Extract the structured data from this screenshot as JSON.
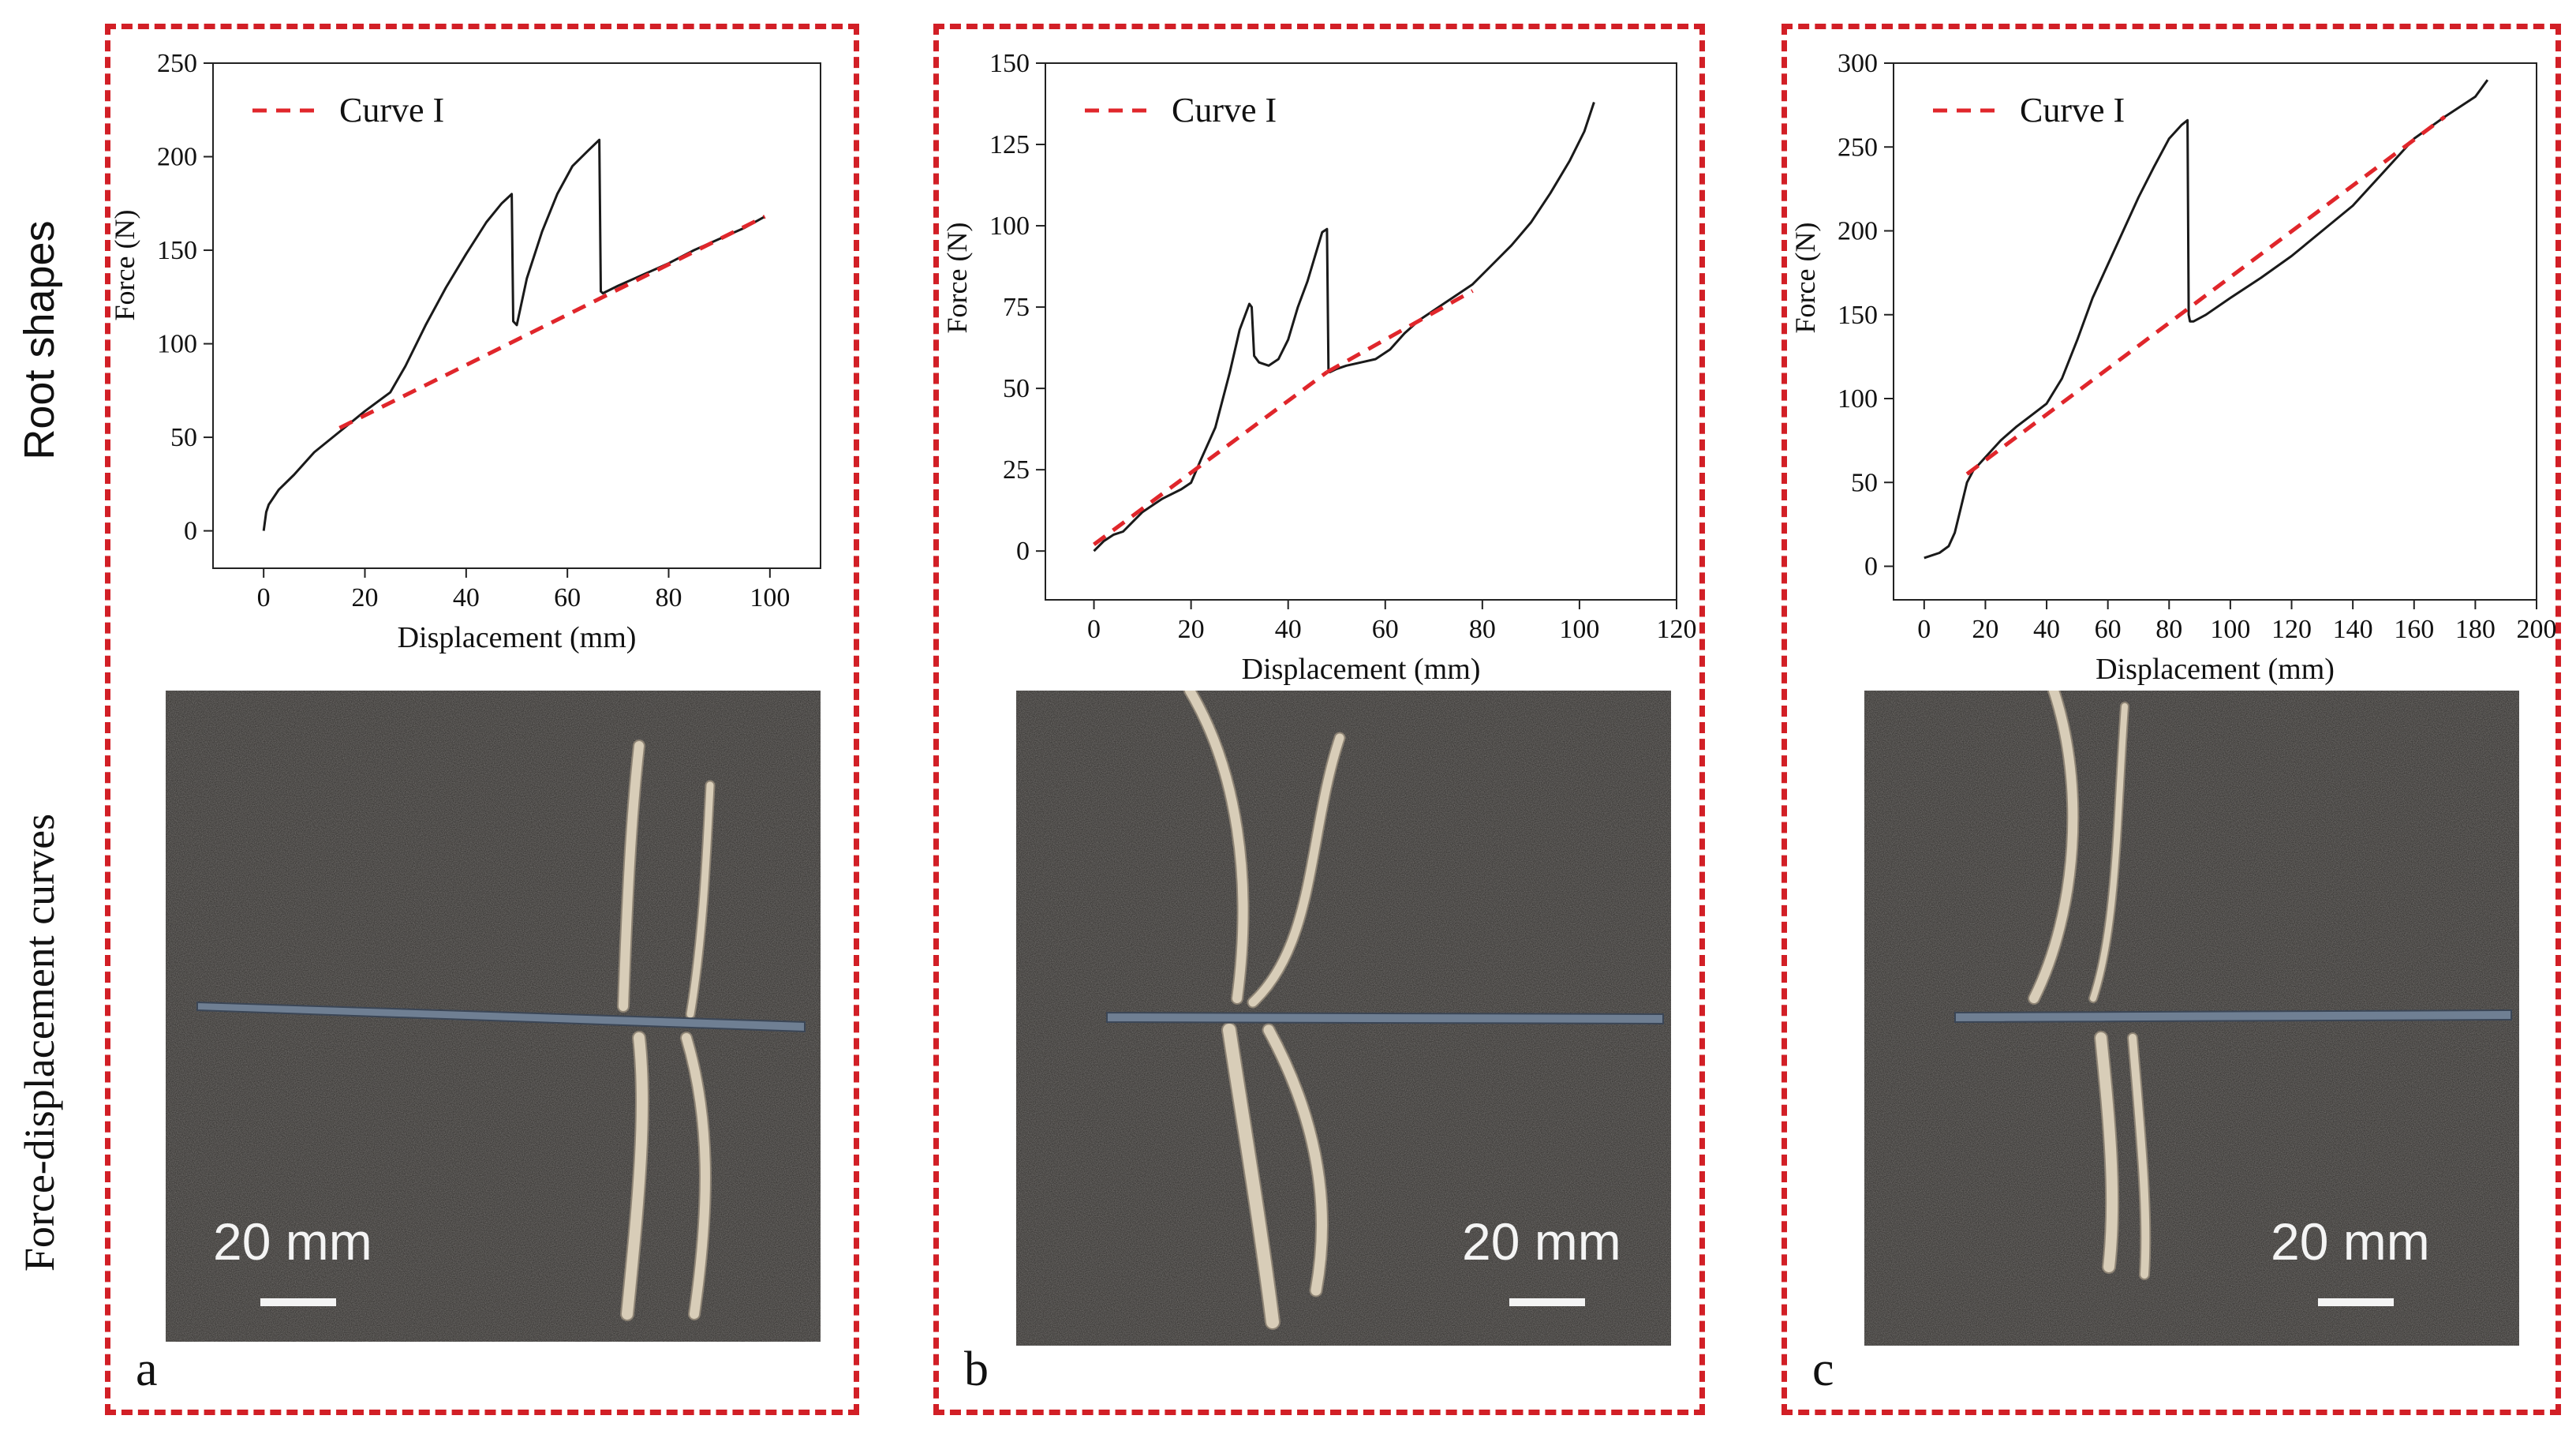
{
  "side_labels": {
    "top": "Root shapes",
    "bottom": "Force-displacement curves"
  },
  "panels": [
    {
      "letter": "a",
      "scale_text": "20 mm"
    },
    {
      "letter": "b",
      "scale_text": "20 mm"
    },
    {
      "letter": "c",
      "scale_text": "20 mm"
    }
  ],
  "colors": {
    "panel_border": "#d21f26",
    "curve": "#1a1a1a",
    "fit_line": "#e0262b"
  },
  "chart_data": [
    {
      "type": "line",
      "xlabel": "Displacement (mm)",
      "ylabel": "Force (N)",
      "xlim": [
        -10,
        110
      ],
      "ylim": [
        -20,
        250
      ],
      "xticks": [
        0,
        20,
        40,
        60,
        80,
        100
      ],
      "yticks": [
        0,
        50,
        100,
        150,
        200,
        250
      ],
      "legend": {
        "entry": "Curve I",
        "placement": "top-left"
      },
      "series": [
        {
          "name": "",
          "style": "solid",
          "x": [
            0,
            0.5,
            1,
            3,
            6,
            10,
            15,
            20,
            25,
            28,
            32,
            36,
            40,
            44,
            47,
            49,
            49.3,
            50,
            52,
            55,
            58,
            61,
            64,
            66.3,
            66.6,
            67,
            70,
            75,
            80,
            85,
            90,
            95,
            99
          ],
          "y": [
            0,
            10,
            14,
            22,
            30,
            42,
            53,
            64,
            74,
            88,
            110,
            130,
            148,
            165,
            175,
            180,
            112,
            110,
            135,
            160,
            180,
            195,
            203,
            209,
            128,
            127,
            131,
            137,
            143,
            150,
            156,
            162,
            168
          ]
        },
        {
          "name": "Curve I",
          "style": "dashed",
          "x": [
            15,
            99
          ],
          "y": [
            55,
            168
          ]
        }
      ]
    },
    {
      "type": "line",
      "xlabel": "Displacement (mm)",
      "ylabel": "Force (N)",
      "xlim": [
        -10,
        120
      ],
      "ylim": [
        -15,
        150
      ],
      "xticks": [
        0,
        20,
        40,
        60,
        80,
        100,
        120
      ],
      "yticks": [
        0,
        25,
        50,
        75,
        100,
        125,
        150
      ],
      "legend": {
        "entry": "Curve I",
        "placement": "top-left"
      },
      "series": [
        {
          "name": "",
          "style": "solid",
          "x": [
            0,
            2,
            4,
            6,
            8,
            10,
            14,
            18,
            20,
            22,
            25,
            28,
            30,
            32,
            32.5,
            33,
            34,
            36,
            38,
            40,
            42,
            44,
            46,
            47,
            48,
            48.3,
            48.6,
            50,
            52,
            55,
            58,
            61,
            64,
            67,
            70,
            74,
            78,
            82,
            86,
            90,
            94,
            98,
            101,
            103
          ],
          "y": [
            0,
            3,
            5,
            6,
            9,
            12,
            16,
            19,
            21,
            28,
            38,
            55,
            68,
            76,
            75,
            60,
            58,
            57,
            59,
            65,
            75,
            83,
            93,
            98,
            99,
            56,
            55,
            56,
            57,
            58,
            59,
            62,
            67,
            71,
            74,
            78,
            82,
            88,
            94,
            101,
            110,
            120,
            129,
            138
          ]
        },
        {
          "name": "Curve I",
          "style": "dashed",
          "x": [
            0,
            48
          ],
          "y": [
            2,
            55
          ]
        },
        {
          "name": "Curve I",
          "style": "dashed",
          "x": [
            48,
            78
          ],
          "y": [
            55,
            80
          ]
        }
      ]
    },
    {
      "type": "line",
      "xlabel": "Displacement (mm)",
      "ylabel": "Force (N)",
      "xlim": [
        -10,
        200
      ],
      "ylim": [
        -20,
        300
      ],
      "xticks": [
        0,
        20,
        40,
        60,
        80,
        100,
        120,
        140,
        160,
        180,
        200
      ],
      "yticks": [
        0,
        50,
        100,
        150,
        200,
        250,
        300
      ],
      "legend": {
        "entry": "Curve I",
        "placement": "top-left"
      },
      "series": [
        {
          "name": "",
          "style": "solid",
          "x": [
            0,
            5,
            8,
            10,
            12,
            14,
            16,
            20,
            25,
            30,
            35,
            40,
            45,
            50,
            55,
            60,
            65,
            70,
            75,
            80,
            84,
            86,
            86.4,
            86.8,
            88,
            92,
            100,
            110,
            120,
            130,
            140,
            150,
            160,
            170,
            180,
            184
          ],
          "y": [
            5,
            8,
            12,
            20,
            35,
            50,
            57,
            65,
            75,
            83,
            90,
            97,
            112,
            135,
            160,
            180,
            200,
            220,
            238,
            255,
            263,
            266,
            150,
            146,
            146,
            150,
            160,
            172,
            185,
            200,
            215,
            235,
            255,
            268,
            280,
            290
          ]
        },
        {
          "name": "Curve I",
          "style": "dashed",
          "x": [
            14,
            170
          ],
          "y": [
            55,
            268
          ]
        }
      ]
    }
  ]
}
